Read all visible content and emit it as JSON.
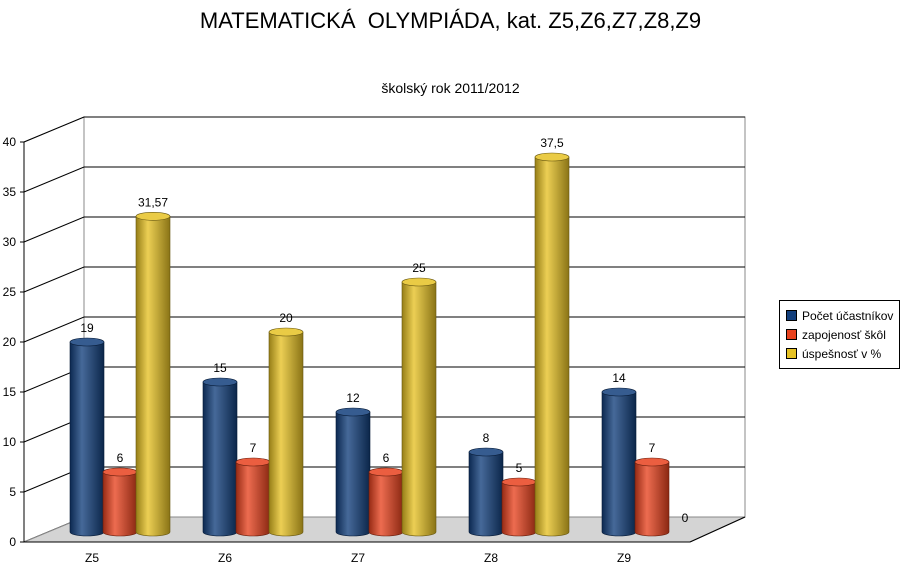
{
  "chart_data": {
    "type": "bar",
    "title": "MATEMATICKÁ  OLYMPIÁDA, kat. Z5,Z6,Z7,Z8,Z9",
    "subtitle": "školský rok 2011/2012",
    "categories": [
      "Z5",
      "Z6",
      "Z7",
      "Z8",
      "Z9"
    ],
    "series": [
      {
        "name": "Počet účastníkov",
        "color": "#123f7c",
        "values": [
          19,
          15,
          12,
          8,
          14
        ],
        "labels": [
          "19",
          "15",
          "12",
          "8",
          "14"
        ]
      },
      {
        "name": "zapojenosť škôl",
        "color": "#e8421e",
        "values": [
          6,
          7,
          6,
          5,
          7
        ],
        "labels": [
          "6",
          "7",
          "6",
          "5",
          "7"
        ]
      },
      {
        "name": "úspešnosť v %",
        "color": "#e6c224",
        "values": [
          31.57,
          20,
          25,
          37.5,
          0
        ],
        "labels": [
          "31,57",
          "20",
          "25",
          "37,5",
          "0"
        ]
      }
    ],
    "ylim": [
      0,
      40
    ],
    "yticks": [
      0,
      5,
      10,
      15,
      20,
      25,
      30,
      35,
      40
    ],
    "grid": true,
    "style": "3d-cylinder",
    "legend_position": "right"
  }
}
